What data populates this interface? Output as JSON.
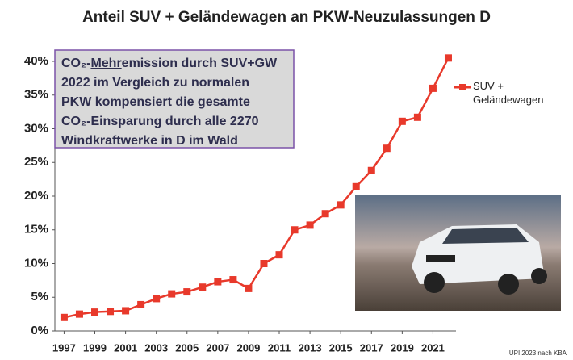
{
  "chart_data": {
    "type": "line",
    "title": "Anteil SUV + Geländewagen an PKW-Neuzulassungen D",
    "x": [
      1997,
      1998,
      1999,
      2000,
      2001,
      2002,
      2003,
      2004,
      2005,
      2006,
      2007,
      2008,
      2009,
      2010,
      2011,
      2012,
      2013,
      2014,
      2015,
      2016,
      2017,
      2018,
      2019,
      2020,
      2021,
      2022
    ],
    "series": [
      {
        "name": "SUV + Geländewagen",
        "color": "#e8392b",
        "values": [
          2.0,
          2.5,
          2.8,
          2.9,
          3.0,
          3.9,
          4.8,
          5.5,
          5.8,
          6.5,
          7.3,
          7.6,
          6.3,
          10.0,
          11.3,
          15.0,
          15.7,
          17.4,
          18.7,
          21.4,
          23.8,
          27.1,
          31.1,
          31.7,
          36.0,
          40.5
        ]
      }
    ],
    "xlim": [
      1996.4,
      2022.5
    ],
    "xticks": [
      1997,
      1999,
      2001,
      2003,
      2005,
      2007,
      2009,
      2011,
      2013,
      2015,
      2017,
      2019,
      2021
    ],
    "ylim": [
      0,
      40
    ],
    "yticks": [
      {
        "value": 0,
        "label": "0%"
      },
      {
        "value": 5,
        "label": "5%"
      },
      {
        "value": 10,
        "label": "10%"
      },
      {
        "value": 15,
        "label": "15%"
      },
      {
        "value": 20,
        "label": "20%"
      },
      {
        "value": 25,
        "label": "25%"
      },
      {
        "value": 30,
        "label": "30%"
      },
      {
        "value": 35,
        "label": "35%"
      },
      {
        "value": 40,
        "label": "40%"
      }
    ],
    "grid": false,
    "annotation": {
      "first_line": [
        "CO₂-",
        "Mehr",
        "emission durch SUV+GW"
      ],
      "lines": [
        "2022 im Vergleich zu normalen",
        "PKW kompensiert die gesamte",
        "CO₂-Einsparung durch alle 2270",
        "Windkraftwerke in D im Wald"
      ]
    },
    "source": "UPI 2023 nach KBA"
  }
}
